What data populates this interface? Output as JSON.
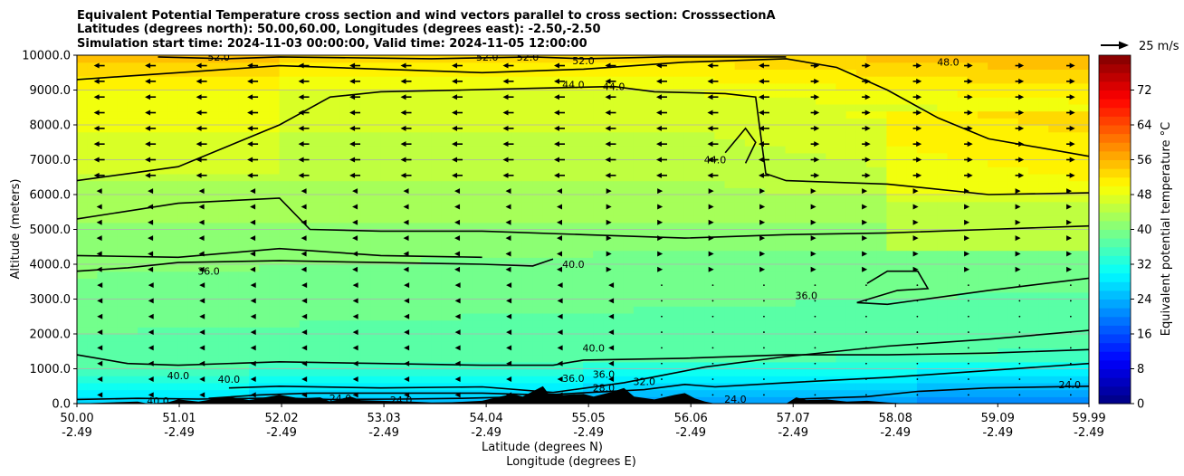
{
  "chart_data": {
    "type": "contour",
    "title": [
      "Equivalent Potential Temperature cross section and wind vectors parallel to cross section: CrosssectionA",
      "Latitudes (degrees north): 50.00,60.00, Longitudes (degrees east): -2.50,-2.50",
      "Simulation start time: 2024-11-03 00:00:00, Valid time: 2024-11-05 12:00:00"
    ],
    "xlabel_lat": "Latitude (degrees N)",
    "xlabel_lon": "Longitude (degrees E)",
    "ylabel": "Altitude (meters)",
    "x_range": [
      50.0,
      59.99
    ],
    "y_range": [
      0,
      10000
    ],
    "x_ticks": [
      {
        "lat": "50.00",
        "lon": "-2.49",
        "v": 50.0
      },
      {
        "lat": "51.01",
        "lon": "-2.49",
        "v": 51.01
      },
      {
        "lat": "52.02",
        "lon": "-2.49",
        "v": 52.02
      },
      {
        "lat": "53.03",
        "lon": "-2.49",
        "v": 53.03
      },
      {
        "lat": "54.04",
        "lon": "-2.49",
        "v": 54.04
      },
      {
        "lat": "55.05",
        "lon": "-2.49",
        "v": 55.05
      },
      {
        "lat": "56.06",
        "lon": "-2.49",
        "v": 56.06
      },
      {
        "lat": "57.07",
        "lon": "-2.49",
        "v": 57.07
      },
      {
        "lat": "58.08",
        "lon": "-2.49",
        "v": 58.08
      },
      {
        "lat": "59.09",
        "lon": "-2.49",
        "v": 59.09
      },
      {
        "lat": "59.99",
        "lon": "-2.49",
        "v": 59.99
      }
    ],
    "y_ticks": [
      {
        "label": "0.0",
        "v": 0
      },
      {
        "label": "1000.0",
        "v": 1000
      },
      {
        "label": "2000.0",
        "v": 2000
      },
      {
        "label": "3000.0",
        "v": 3000
      },
      {
        "label": "4000.0",
        "v": 4000
      },
      {
        "label": "5000.0",
        "v": 5000
      },
      {
        "label": "6000.0",
        "v": 6000
      },
      {
        "label": "7000.0",
        "v": 7000
      },
      {
        "label": "8000.0",
        "v": 8000
      },
      {
        "label": "9000.0",
        "v": 9000
      },
      {
        "label": "10000.0",
        "v": 10000
      }
    ],
    "horizontal_grid": true,
    "colorbar": {
      "label": "Equivalent potential temperature °C",
      "range": [
        0,
        80
      ],
      "ticks": [
        "0",
        "8",
        "16",
        "24",
        "32",
        "40",
        "48",
        "56",
        "64",
        "72"
      ],
      "colormap": "jet"
    },
    "wind_key_label": "25 m/s",
    "contour_lines": [
      {
        "value": 24,
        "points": [
          [
            50.0,
            120
          ],
          [
            50.6,
            150
          ],
          [
            51.2,
            130
          ],
          [
            52.0,
            160
          ],
          [
            52.5,
            120
          ],
          [
            53.2,
            130
          ],
          [
            53.8,
            150
          ],
          [
            54.2,
            180
          ],
          [
            54.5,
            100
          ]
        ]
      },
      {
        "value": 24,
        "points": [
          [
            57.1,
            130
          ],
          [
            57.8,
            200
          ],
          [
            58.3,
            350
          ],
          [
            59.0,
            450
          ],
          [
            59.99,
            500
          ]
        ]
      },
      {
        "value": 32,
        "points": [
          [
            51.3,
            150
          ],
          [
            51.8,
            250
          ],
          [
            52.3,
            300
          ],
          [
            53.2,
            300
          ],
          [
            54.0,
            300
          ],
          [
            54.6,
            250
          ],
          [
            55.0,
            310
          ],
          [
            55.6,
            400
          ],
          [
            56.0,
            550
          ],
          [
            56.3,
            480
          ],
          [
            57.0,
            600
          ],
          [
            58.0,
            750
          ],
          [
            59.0,
            950
          ],
          [
            59.99,
            1150
          ]
        ]
      },
      {
        "value": 36,
        "points": [
          [
            51.5,
            450
          ],
          [
            52.0,
            500
          ],
          [
            53.0,
            450
          ],
          [
            54.0,
            480
          ],
          [
            54.7,
            320
          ],
          [
            55.4,
            600
          ],
          [
            56.2,
            1050
          ],
          [
            57.0,
            1350
          ],
          [
            58.0,
            1650
          ],
          [
            59.0,
            1850
          ],
          [
            59.99,
            2100
          ]
        ]
      },
      {
        "value": 36,
        "points": [
          [
            57.8,
            3450
          ],
          [
            58.0,
            3800
          ],
          [
            58.3,
            3800
          ],
          [
            58.4,
            3300
          ],
          [
            58.1,
            3250
          ],
          [
            57.7,
            2900
          ],
          [
            58.0,
            2850
          ],
          [
            59.0,
            3250
          ],
          [
            59.99,
            3600
          ]
        ]
      },
      {
        "value": 40,
        "points": [
          [
            50.0,
            1400
          ],
          [
            50.5,
            1150
          ],
          [
            51.0,
            1100
          ],
          [
            52.0,
            1200
          ],
          [
            53.0,
            1150
          ],
          [
            54.0,
            1100
          ],
          [
            54.7,
            1100
          ],
          [
            55.0,
            1250
          ],
          [
            56.0,
            1300
          ],
          [
            57.0,
            1400
          ],
          [
            58.0,
            1400
          ],
          [
            59.0,
            1450
          ],
          [
            59.99,
            1550
          ]
        ]
      },
      {
        "value": 40,
        "points": [
          [
            50.0,
            3800
          ],
          [
            50.5,
            3900
          ],
          [
            51.0,
            4050
          ],
          [
            52.0,
            4100
          ],
          [
            53.0,
            4050
          ],
          [
            54.0,
            4000
          ],
          [
            54.5,
            3950
          ],
          [
            54.7,
            4150
          ]
        ]
      },
      {
        "value": 40,
        "points": [
          [
            50.0,
            4250
          ],
          [
            51.0,
            4200
          ],
          [
            52.0,
            4450
          ],
          [
            53.0,
            4250
          ],
          [
            54.0,
            4200
          ]
        ]
      },
      {
        "value": 40,
        "points": [
          [
            50.0,
            5300
          ],
          [
            51.0,
            5750
          ],
          [
            52.0,
            5900
          ],
          [
            52.3,
            5000
          ],
          [
            53.0,
            4950
          ],
          [
            54.0,
            4950
          ],
          [
            55.0,
            4850
          ],
          [
            56.0,
            4750
          ],
          [
            57.0,
            4850
          ],
          [
            58.0,
            4900
          ],
          [
            59.0,
            5000
          ],
          [
            59.99,
            5100
          ]
        ]
      },
      {
        "value": 44,
        "points": [
          [
            50.0,
            6400
          ],
          [
            50.5,
            6600
          ],
          [
            51.0,
            6800
          ],
          [
            51.5,
            7400
          ],
          [
            52.0,
            8000
          ],
          [
            52.5,
            8800
          ],
          [
            53.0,
            8950
          ],
          [
            53.8,
            9000
          ],
          [
            54.5,
            9050
          ],
          [
            55.3,
            9100
          ],
          [
            55.7,
            8950
          ],
          [
            56.4,
            8900
          ],
          [
            56.7,
            8800
          ],
          [
            56.8,
            6600
          ],
          [
            57.0,
            6400
          ],
          [
            58.0,
            6300
          ],
          [
            59.0,
            6000
          ],
          [
            59.99,
            6050
          ]
        ]
      },
      {
        "value": 44,
        "points": [
          [
            56.4,
            7200
          ],
          [
            56.6,
            7900
          ],
          [
            56.7,
            7500
          ],
          [
            56.6,
            6900
          ]
        ]
      },
      {
        "value": 48,
        "points": [
          [
            50.0,
            9300
          ],
          [
            50.5,
            9400
          ],
          [
            51.0,
            9500
          ],
          [
            52.0,
            9700
          ],
          [
            53.0,
            9600
          ],
          [
            54.0,
            9500
          ],
          [
            55.0,
            9600
          ],
          [
            56.0,
            9800
          ],
          [
            57.0,
            9900
          ],
          [
            57.5,
            9650
          ],
          [
            58.0,
            9000
          ],
          [
            58.5,
            8200
          ],
          [
            59.0,
            7600
          ],
          [
            59.99,
            7100
          ]
        ]
      },
      {
        "value": 52,
        "points": [
          [
            50.8,
            9950
          ],
          [
            51.5,
            9900
          ],
          [
            52.0,
            9950
          ],
          [
            53.5,
            9900
          ],
          [
            54.5,
            9950
          ],
          [
            55.0,
            9900
          ],
          [
            55.8,
            9950
          ],
          [
            57.0,
            9950
          ]
        ]
      }
    ],
    "contour_labels": [
      {
        "text": "52.0",
        "x": 51.4,
        "y": 9950
      },
      {
        "text": "52.0",
        "x": 54.05,
        "y": 9950
      },
      {
        "text": "52.0",
        "x": 54.45,
        "y": 9950
      },
      {
        "text": "52.0",
        "x": 55.0,
        "y": 9850
      },
      {
        "text": "48.0",
        "x": 58.6,
        "y": 9800
      },
      {
        "text": "44.0",
        "x": 54.9,
        "y": 9150
      },
      {
        "text": "44.0",
        "x": 55.3,
        "y": 9100
      },
      {
        "text": "44.0",
        "x": 56.3,
        "y": 7000
      },
      {
        "text": "40.0",
        "x": 54.9,
        "y": 4000
      },
      {
        "text": "40.0",
        "x": 55.1,
        "y": 1600
      },
      {
        "text": "40.0",
        "x": 51.0,
        "y": 800
      },
      {
        "text": "40.0",
        "x": 51.5,
        "y": 700
      },
      {
        "text": "40.0",
        "x": 50.8,
        "y": 80
      },
      {
        "text": "36.0",
        "x": 51.3,
        "y": 3800
      },
      {
        "text": "36.0",
        "x": 57.2,
        "y": 3100
      },
      {
        "text": "36.0",
        "x": 54.9,
        "y": 730
      },
      {
        "text": "36.0",
        "x": 55.2,
        "y": 850
      },
      {
        "text": "32.0",
        "x": 55.6,
        "y": 630
      },
      {
        "text": "24.0",
        "x": 53.2,
        "y": 100
      },
      {
        "text": "24.0",
        "x": 52.6,
        "y": 150
      },
      {
        "text": "24.0",
        "x": 59.8,
        "y": 550
      },
      {
        "text": "28.0",
        "x": 55.2,
        "y": 450
      },
      {
        "text": "24.0",
        "x": 56.5,
        "y": 130
      }
    ],
    "terrain": [
      [
        50.0,
        0
      ],
      [
        50.6,
        60
      ],
      [
        50.7,
        0
      ],
      [
        50.9,
        40
      ],
      [
        51.0,
        120
      ],
      [
        51.2,
        60
      ],
      [
        51.5,
        200
      ],
      [
        51.7,
        100
      ],
      [
        52.0,
        250
      ],
      [
        52.2,
        150
      ],
      [
        52.4,
        180
      ],
      [
        52.5,
        60
      ],
      [
        52.7,
        200
      ],
      [
        52.8,
        100
      ],
      [
        53.0,
        80
      ],
      [
        53.3,
        60
      ],
      [
        53.5,
        30
      ],
      [
        53.7,
        40
      ],
      [
        54.0,
        80
      ],
      [
        54.1,
        150
      ],
      [
        54.3,
        280
      ],
      [
        54.4,
        200
      ],
      [
        54.5,
        350
      ],
      [
        54.6,
        500
      ],
      [
        54.65,
        300
      ],
      [
        54.8,
        250
      ],
      [
        55.0,
        280
      ],
      [
        55.1,
        200
      ],
      [
        55.3,
        350
      ],
      [
        55.4,
        450
      ],
      [
        55.5,
        200
      ],
      [
        55.7,
        120
      ],
      [
        55.9,
        250
      ],
      [
        56.0,
        300
      ],
      [
        56.1,
        150
      ],
      [
        56.2,
        60
      ],
      [
        56.3,
        0
      ],
      [
        57.0,
        0
      ],
      [
        57.1,
        180
      ],
      [
        57.2,
        100
      ],
      [
        57.4,
        120
      ],
      [
        57.6,
        60
      ],
      [
        57.8,
        80
      ],
      [
        58.0,
        30
      ],
      [
        58.2,
        0
      ]
    ]
  }
}
